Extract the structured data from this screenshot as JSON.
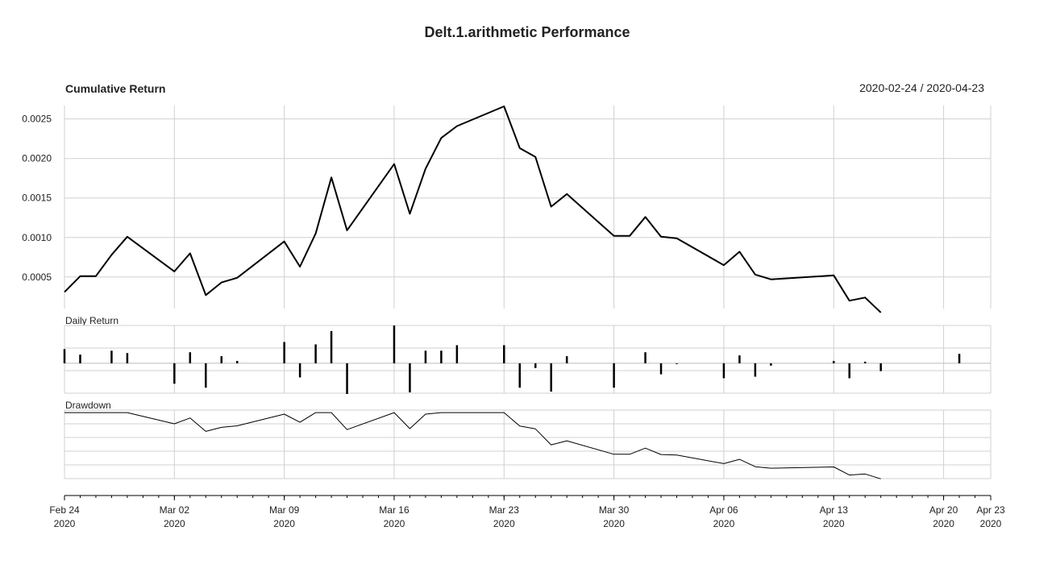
{
  "chart_data": {
    "type": "line",
    "title": "Delt.1.arithmetic Performance",
    "date_range": "2020-02-24 / 2020-04-23",
    "x_ticks": [
      {
        "date": "2020-02-24",
        "label": "Feb 24",
        "year": "2020"
      },
      {
        "date": "2020-03-02",
        "label": "Mar 02",
        "year": "2020"
      },
      {
        "date": "2020-03-09",
        "label": "Mar 09",
        "year": "2020"
      },
      {
        "date": "2020-03-16",
        "label": "Mar 16",
        "year": "2020"
      },
      {
        "date": "2020-03-23",
        "label": "Mar 23",
        "year": "2020"
      },
      {
        "date": "2020-03-30",
        "label": "Mar 30",
        "year": "2020"
      },
      {
        "date": "2020-04-06",
        "label": "Apr 06",
        "year": "2020"
      },
      {
        "date": "2020-04-13",
        "label": "Apr 13",
        "year": "2020"
      },
      {
        "date": "2020-04-20",
        "label": "Apr 20",
        "year": "2020"
      },
      {
        "date": "2020-04-23",
        "label": "Apr 23",
        "year": "2020"
      }
    ],
    "xlim": [
      "2020-02-24",
      "2020-04-23"
    ],
    "panels": [
      {
        "key": "cumulative",
        "title": "Cumulative Return",
        "type": "line",
        "ylim": [
          0.0001,
          0.00267
        ],
        "y_ticks": [
          "0.0005",
          "0.0010",
          "0.0015",
          "0.0020",
          "0.0025"
        ],
        "grid": true,
        "x": [
          "2020-02-24",
          "2020-02-25",
          "2020-02-26",
          "2020-02-27",
          "2020-02-28",
          "2020-03-02",
          "2020-03-03",
          "2020-03-04",
          "2020-03-05",
          "2020-03-06",
          "2020-03-09",
          "2020-03-10",
          "2020-03-11",
          "2020-03-12",
          "2020-03-13",
          "2020-03-16",
          "2020-03-17",
          "2020-03-18",
          "2020-03-19",
          "2020-03-20",
          "2020-03-23",
          "2020-03-24",
          "2020-03-25",
          "2020-03-26",
          "2020-03-27",
          "2020-03-30",
          "2020-03-31",
          "2020-04-01",
          "2020-04-02",
          "2020-04-03",
          "2020-04-06",
          "2020-04-07",
          "2020-04-08",
          "2020-04-09",
          "2020-04-13",
          "2020-04-14",
          "2020-04-15",
          "2020-04-16"
        ],
        "values": [
          0.00031,
          0.00051,
          0.00051,
          0.00078,
          0.00101,
          0.00057,
          0.0008,
          0.00027,
          0.00043,
          0.00049,
          0.00095,
          0.00063,
          0.00105,
          0.00176,
          0.00109,
          0.00193,
          0.0013,
          0.00187,
          0.00226,
          0.00241,
          0.00266,
          0.00213,
          0.00202,
          0.00139,
          0.00155,
          0.00102,
          0.00102,
          0.00126,
          0.00101,
          0.00099,
          0.00065,
          0.00082,
          0.00053,
          0.00047,
          0.00052,
          0.0002,
          0.00024,
          5e-05
        ]
      },
      {
        "key": "daily",
        "title": "Daily Return",
        "type": "bar",
        "ylim": [
          -0.00038,
          0.00048
        ],
        "grid": true,
        "x": [
          "2020-02-24",
          "2020-02-25",
          "2020-02-27",
          "2020-02-28",
          "2020-03-02",
          "2020-03-03",
          "2020-03-04",
          "2020-03-05",
          "2020-03-06",
          "2020-03-09",
          "2020-03-10",
          "2020-03-11",
          "2020-03-12",
          "2020-03-13",
          "2020-03-16",
          "2020-03-17",
          "2020-03-18",
          "2020-03-19",
          "2020-03-20",
          "2020-03-23",
          "2020-03-24",
          "2020-03-25",
          "2020-03-26",
          "2020-03-27",
          "2020-03-30",
          "2020-03-31",
          "2020-04-01",
          "2020-04-02",
          "2020-04-03",
          "2020-04-06",
          "2020-04-07",
          "2020-04-08",
          "2020-04-09",
          "2020-04-13",
          "2020-04-14",
          "2020-04-15",
          "2020-04-16",
          "2020-04-21"
        ],
        "values": [
          0.00018,
          0.00011,
          0.00016,
          0.00013,
          -0.00026,
          0.00014,
          -0.00031,
          9e-05,
          3e-05,
          0.00027,
          -0.00018,
          0.00024,
          0.00041,
          -0.00039,
          0.00048,
          -0.00037,
          0.00016,
          0.00016,
          0.00023,
          0.00023,
          -0.00031,
          -6e-05,
          -0.00036,
          9e-05,
          -0.00031,
          0,
          0.00014,
          -0.00014,
          -1e-05,
          -0.00019,
          0.0001,
          -0.00017,
          -3e-05,
          3e-05,
          -0.00019,
          2e-05,
          -0.0001,
          0.00012
        ]
      },
      {
        "key": "drawdown",
        "title": "Drawdown",
        "type": "line",
        "ylim": [
          -0.0026,
          0.0001
        ],
        "grid": true,
        "x": [
          "2020-02-24",
          "2020-02-28",
          "2020-03-02",
          "2020-03-03",
          "2020-03-04",
          "2020-03-05",
          "2020-03-06",
          "2020-03-09",
          "2020-03-10",
          "2020-03-11",
          "2020-03-12",
          "2020-03-13",
          "2020-03-16",
          "2020-03-17",
          "2020-03-18",
          "2020-03-19",
          "2020-03-20",
          "2020-03-23",
          "2020-03-24",
          "2020-03-25",
          "2020-03-26",
          "2020-03-27",
          "2020-03-30",
          "2020-03-31",
          "2020-04-01",
          "2020-04-02",
          "2020-04-03",
          "2020-04-06",
          "2020-04-07",
          "2020-04-08",
          "2020-04-09",
          "2020-04-13",
          "2020-04-14",
          "2020-04-15",
          "2020-04-16"
        ],
        "values": [
          0,
          0,
          -0.00044,
          -0.00021,
          -0.00074,
          -0.00058,
          -0.00052,
          -6e-05,
          -0.00038,
          0,
          0,
          -0.00067,
          0,
          -0.00063,
          -6e-05,
          0,
          0,
          0,
          -0.00053,
          -0.00064,
          -0.00127,
          -0.00111,
          -0.00164,
          -0.00164,
          -0.0014,
          -0.00165,
          -0.00167,
          -0.00201,
          -0.00184,
          -0.00213,
          -0.00219,
          -0.00214,
          -0.00246,
          -0.00242,
          -0.00261
        ]
      }
    ]
  }
}
